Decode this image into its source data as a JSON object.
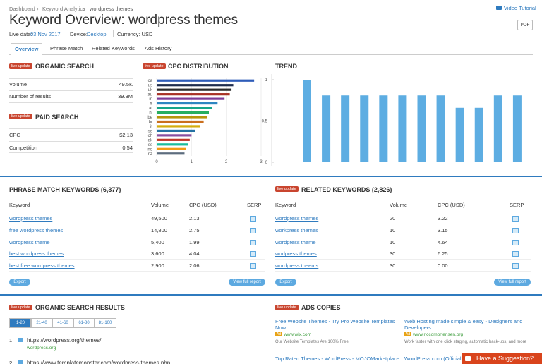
{
  "breadcrumb": [
    "Dashboard",
    "Keyword Analytics",
    "wordpress themes"
  ],
  "video_tutorial": "Video Tutorial",
  "title": "Keyword Overview: wordpress themes",
  "pdf": "PDF",
  "meta": {
    "live_data_label": "Live data:",
    "live_data": "03 Nov 2017",
    "device_label": "Device:",
    "device": "Desktop",
    "currency": "Currency: USD"
  },
  "tabs": [
    "Overview",
    "Phrase Match",
    "Related Keywords",
    "Ads History"
  ],
  "badge": "live update",
  "organic_search": {
    "title": "ORGANIC SEARCH",
    "rows": [
      [
        "Volume",
        "49.5K"
      ],
      [
        "Number of results",
        "39.3M"
      ]
    ]
  },
  "paid_search": {
    "title": "PAID SEARCH",
    "rows": [
      [
        "CPC",
        "$2.13"
      ],
      [
        "Competition",
        "0.54"
      ]
    ]
  },
  "cpc_chart": {
    "type": "bar",
    "orientation": "horizontal",
    "title": "CPC DISTRIBUTION",
    "categories": [
      "ca",
      "us",
      "uk",
      "au",
      "in",
      "fr",
      "at",
      "nl",
      "be",
      "br",
      "it",
      "se",
      "ch",
      "dk",
      "es",
      "no",
      "nz"
    ],
    "values": [
      2.8,
      2.2,
      2.15,
      2.1,
      1.95,
      1.75,
      1.6,
      1.5,
      1.45,
      1.35,
      1.25,
      1.1,
      1.0,
      0.95,
      0.9,
      0.85,
      0.8
    ],
    "colors": [
      "#2e5cb8",
      "#1f2d4d",
      "#2b2b2b",
      "#a93226",
      "#7d3c98",
      "#2e86c1",
      "#17a589",
      "#27ae60",
      "#b7950b",
      "#ca6f1e",
      "#d4ac0d",
      "#2471a3",
      "#884ea0",
      "#c0392b",
      "#1abc9c",
      "#f39c12",
      "#5d6d7e"
    ],
    "xlim": [
      0,
      3
    ],
    "xticks": [
      0,
      1,
      2,
      3
    ]
  },
  "trend_chart": {
    "type": "bar",
    "title": "TREND",
    "values": [
      1,
      0.81,
      0.81,
      0.81,
      0.81,
      0.81,
      0.81,
      0.81,
      0.66,
      0.66,
      0.81,
      0.81
    ],
    "color": "#5dade2",
    "ylim": [
      0,
      1
    ],
    "yticks": [
      0,
      0.5,
      1
    ]
  },
  "phrase_match": {
    "title": "PHRASE MATCH KEYWORDS (6,377)",
    "columns": [
      "Keyword",
      "Volume",
      "CPC (USD)",
      "SERP"
    ],
    "rows": [
      [
        "wordpress themes",
        "49,500",
        "2.13"
      ],
      [
        "free wordpress themes",
        "14,800",
        "2.75"
      ],
      [
        "wordpress theme",
        "5,400",
        "1.99"
      ],
      [
        "best wordpress themes",
        "3,600",
        "4.04"
      ],
      [
        "best free wordpress themes",
        "2,900",
        "2.06"
      ]
    ],
    "export": "Export",
    "view_full": "View full report"
  },
  "related": {
    "title": "RELATED KEYWORDS (2,826)",
    "columns": [
      "Keyword",
      "Volume",
      "CPC (USD)",
      "SERP"
    ],
    "rows": [
      [
        "wordpress themes",
        "20",
        "3.22"
      ],
      [
        "workpress themes",
        "10",
        "3.15"
      ],
      [
        "wordpress theme",
        "10",
        "4.64"
      ],
      [
        "wodpress themes",
        "30",
        "6.25"
      ],
      [
        "wordpress theems",
        "30",
        "0.00"
      ]
    ],
    "export": "Export",
    "view_full": "View full report"
  },
  "organic_results": {
    "title": "ORGANIC SEARCH RESULTS",
    "pages": [
      "1-20",
      "21-40",
      "41-60",
      "61-80",
      "81-100"
    ],
    "results": [
      {
        "rank": "1",
        "url": "https://wordpress.org/themes/",
        "domain": "wordpress.org"
      },
      {
        "rank": "2",
        "url": "https://www.templatemonster.com/wordpress-themes.php"
      }
    ]
  },
  "ads": {
    "title": "ADS COPIES",
    "ad_badge": "Ad",
    "items": [
      {
        "title": "Free Website Themes - Try Pro Website Templates Now",
        "url": "www.wix.com",
        "text": "Our Website Templates Are 100% Free"
      },
      {
        "title": "Web Hosting made simple & easy - Designers and Developers",
        "url": "www.riccomortensen.org",
        "text": "Work faster with one click staging, automatic back-ups, and more"
      },
      {
        "title": "Top Rated Themes - WordPress - MOJOMarketplace"
      },
      {
        "title": "WordPress.com (Official"
      }
    ]
  },
  "suggestion": "Have a Suggestion?"
}
